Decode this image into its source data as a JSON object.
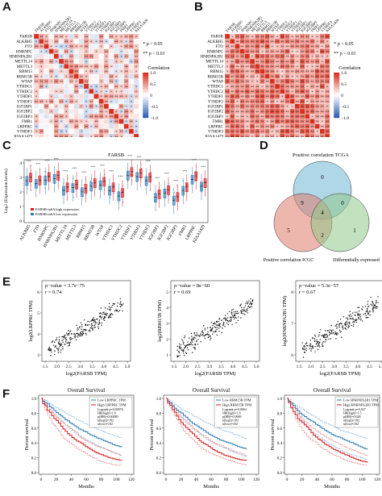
{
  "panels": {
    "A": {
      "letter": "A",
      "genes": [
        "FARSB",
        "ALKBH5",
        "FTO",
        "HNRNPC",
        "HNRNPA2B1",
        "METTL14",
        "METTL3",
        "RBM15",
        "RBM15B",
        "WTAP",
        "YTHDC1",
        "YTHDC2",
        "YTHDF1",
        "YTHDF2",
        "IGF2BP1",
        "IGF2BP2",
        "IGF2BP3",
        "FMR1",
        "LRPPRC",
        "YTHDF3",
        "KIAA1429"
      ],
      "sig1": "* p < 0.05",
      "sig2": "** p < 0.01",
      "colorbar_title": "Correlation",
      "colorbar_ticks": [
        "1.0",
        "0.5",
        "0",
        "−0.5",
        "−1.0"
      ]
    },
    "B": {
      "letter": "B",
      "genes": [
        "FARSB",
        "ALKBH5",
        "FTO",
        "HNRNPC",
        "HNRNPA2B1",
        "METTL14",
        "METTL3",
        "RBM15",
        "RBM15B",
        "WTAP",
        "YTHDC1",
        "YTHDC2",
        "YTHDF1",
        "YTHDF2",
        "IGF2BP1",
        "IGF2BP2",
        "IGF2BP3",
        "FMR1",
        "LRPPRC",
        "YTHDF3",
        "KIAA1429"
      ],
      "sig1": "* p < 0.05",
      "sig2": "** p < 0.01",
      "colorbar_title": "Correlation",
      "colorbar_ticks": [
        "1.0",
        "0.5",
        "0",
        "−0.5",
        "−1.0"
      ]
    },
    "C": {
      "letter": "C",
      "title": "FARSB",
      "ylabel": "Log2 (Expression levels)",
      "legend_high": "FARSB-m6A high expression",
      "legend_low": "FARSB-m6A low expression",
      "categories": [
        "ALKBH5",
        "FTO",
        "HNRNPC",
        "HNRNPA2B1",
        "METTL14",
        "METTL3",
        "RBM15",
        "RBM15B",
        "WTAP",
        "YTHDC1",
        "YTHDC2",
        "YTHDF1",
        "YTHDF2",
        "YTHDF3",
        "IGF2BP1",
        "IGF2BP2",
        "IGF2BP3",
        "FMR1",
        "LRPPRC",
        "KIAA1429"
      ],
      "y_ticks": [
        "4",
        "3",
        "2",
        "1",
        "0"
      ]
    },
    "D": {
      "letter": "D",
      "label_tcga": "Positive correlation TCGA",
      "label_icgc": "Positive correlation ICGC",
      "label_diff": "Differentially expressed",
      "counts": {
        "tcga_only": "0",
        "tcga_icgc": "9",
        "tcga_diff": "0",
        "center": "4",
        "icgc_only": "5",
        "icgc_diff": "2",
        "diff_only": "1"
      }
    },
    "E": {
      "letter": "E",
      "plots": [
        {
          "pvalue": "p−value = 3.7e−75",
          "r": "r = 0.74",
          "ylabel": "log2(LRPPRC TPM)",
          "xlabel": "log2(FARSB TPM)",
          "yticks": [
            "6",
            "5",
            "4",
            "3"
          ],
          "xticks": [
            "1.5",
            "2.0",
            "2.5",
            "3.0",
            "3.5",
            "4.0",
            "4.5",
            "5.0"
          ]
        },
        {
          "pvalue": "p−value = 8e−60",
          "r": "r = 0.69",
          "ylabel": "log2(RBM15B TPM)",
          "xlabel": "log2(FARSB TPM)",
          "yticks": [
            "5",
            "4",
            "3",
            "2",
            "1"
          ],
          "xticks": [
            "1.5",
            "2.0",
            "2.5",
            "3.0",
            "3.5",
            "4.0",
            "4.5",
            "5.0"
          ]
        },
        {
          "pvalue": "p−value = 5.3e−57",
          "r": "r = 0.67",
          "ylabel": "log2(HNRNPA2B1 TPM)",
          "xlabel": "log2(FARSB TPM)",
          "yticks": [
            "8",
            "7",
            "6"
          ],
          "xticks": [
            "1.5",
            "2.0",
            "2.5",
            "3.0",
            "3.5",
            "4.0",
            "4.5",
            "5.0"
          ]
        }
      ]
    },
    "F": {
      "letter": "F",
      "plots": [
        {
          "title": "Overall Survival",
          "legend_low": "Low LRPPRC TPM",
          "legend_high": "High LRPPRC TPM",
          "stats": [
            "Logrank p=0.00076",
            "HR(high)=1.8",
            "p(HR)=0.00089",
            "n(high)=182",
            "n(low)=182"
          ],
          "ylabel": "Percent survival",
          "xlabel": "Months",
          "yticks": [
            "1.0",
            "0.8",
            "0.6",
            "0.4",
            "0.2",
            "0.0"
          ],
          "xticks": [
            "0",
            "20",
            "40",
            "60",
            "80",
            "100",
            "120"
          ]
        },
        {
          "title": "Overall Survival",
          "legend_low": "Low RBM15B TPM",
          "legend_high": "High RBM15B TPM",
          "stats": [
            "Logrank p=0.0064",
            "HR(high)=1.6",
            "p(HR)=0.0069",
            "n(high)=182",
            "n(low)=182"
          ],
          "ylabel": "Percent survival",
          "xlabel": "Months",
          "yticks": [
            "1.0",
            "0.8",
            "0.6",
            "0.4",
            "0.2",
            "0.0"
          ],
          "xticks": [
            "0",
            "20",
            "40",
            "60",
            "80",
            "100",
            "120"
          ]
        },
        {
          "title": "Overall Survival",
          "legend_low": "Low HNRNPA2B1 TPM",
          "legend_high": "High HNRNPA2B1 TPM",
          "stats": [
            "Logrank p=0.027",
            "HR(high)=1.5",
            "p(HR)=0.028",
            "n(high)=182",
            "n(low)=182"
          ],
          "ylabel": "Percent survival",
          "xlabel": "Months",
          "yticks": [
            "1.0",
            "0.8",
            "0.6",
            "0.4",
            "0.2",
            "0.0"
          ],
          "xticks": [
            "0",
            "20",
            "40",
            "60",
            "80",
            "100",
            "120"
          ]
        }
      ]
    }
  },
  "colors": {
    "red": "#d7191c",
    "blue": "#2c7bb6",
    "venn_blue": "#6fb6d6",
    "venn_red": "#e07b6b",
    "venn_green": "#8fc88a"
  }
}
